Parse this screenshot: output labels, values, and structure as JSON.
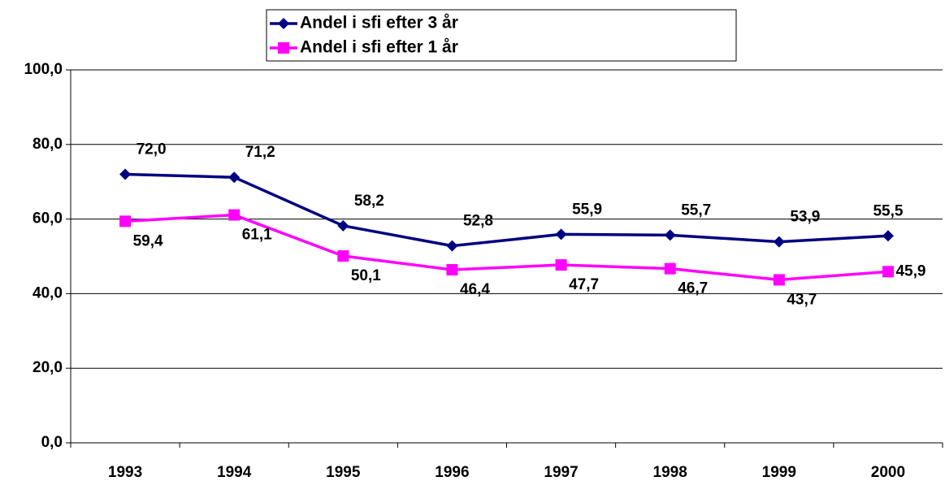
{
  "chart_data": {
    "type": "line",
    "categories": [
      "1993",
      "1994",
      "1995",
      "1996",
      "1997",
      "1998",
      "1999",
      "2000"
    ],
    "series": [
      {
        "name": "Andel i sfi efter 3 år",
        "color": "#000080",
        "marker": "diamond",
        "values": [
          72.0,
          71.2,
          58.2,
          52.8,
          55.9,
          55.7,
          53.9,
          55.5
        ],
        "value_labels": [
          "72,0",
          "71,2",
          "58,2",
          "52,8",
          "55,9",
          "55,7",
          "53,9",
          "55,5"
        ]
      },
      {
        "name": "Andel i sfi efter 1 år",
        "color": "#ff00ff",
        "marker": "square",
        "values": [
          59.4,
          61.1,
          50.1,
          46.4,
          47.7,
          46.7,
          43.7,
          45.9
        ],
        "value_labels": [
          "59,4",
          "61,1",
          "50,1",
          "46,4",
          "47,7",
          "46,7",
          "43,7",
          "45,9"
        ]
      }
    ],
    "ylim": [
      0,
      100
    ],
    "yticks": [
      {
        "value": 0,
        "label": "0,0"
      },
      {
        "value": 20,
        "label": "20,0"
      },
      {
        "value": 40,
        "label": "40,0"
      },
      {
        "value": 60,
        "label": "60,0"
      },
      {
        "value": 80,
        "label": "80,0"
      },
      {
        "value": 100,
        "label": "100,0"
      }
    ],
    "grid": true,
    "legend": "top"
  }
}
